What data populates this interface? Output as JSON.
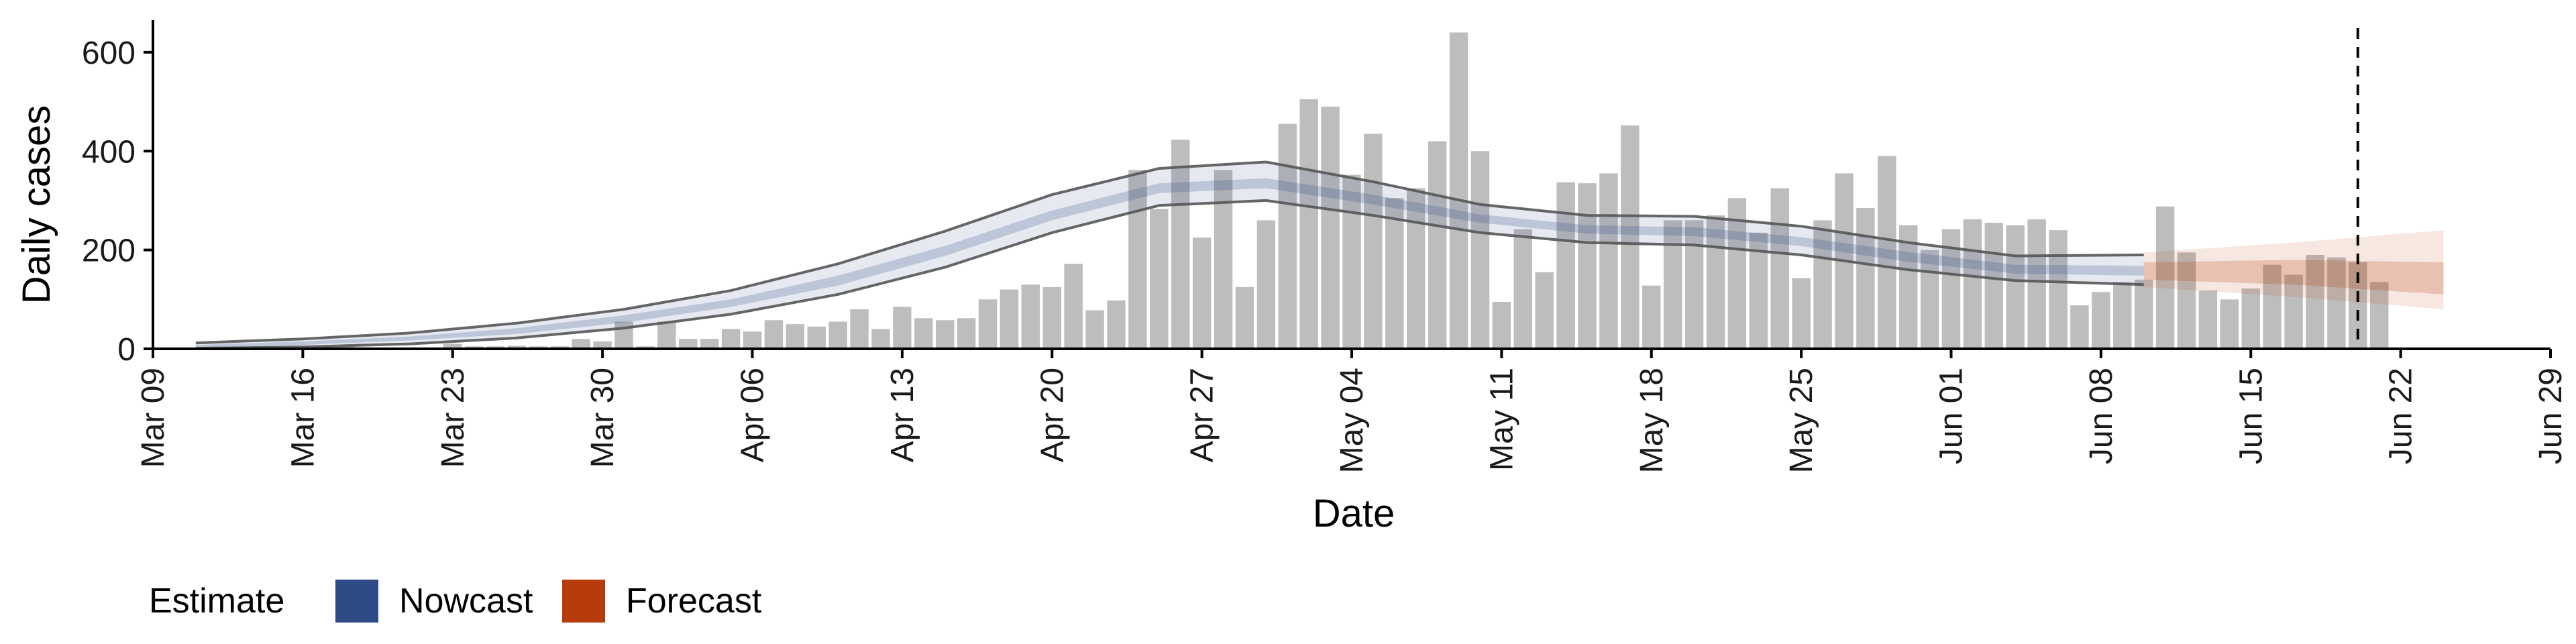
{
  "chart_data": {
    "type": "bar",
    "title": "",
    "xlabel": "Date",
    "ylabel": "Daily cases",
    "ylim": [
      0,
      665
    ],
    "yticks": [
      0,
      200,
      400,
      600
    ],
    "x_range": [
      "2020-03-09",
      "2020-06-29"
    ],
    "x_ticks": [
      {
        "date": "2020-03-09",
        "label": "Mar 09"
      },
      {
        "date": "2020-03-16",
        "label": "Mar 16"
      },
      {
        "date": "2020-03-23",
        "label": "Mar 23"
      },
      {
        "date": "2020-03-30",
        "label": "Mar 30"
      },
      {
        "date": "2020-04-06",
        "label": "Apr 06"
      },
      {
        "date": "2020-04-13",
        "label": "Apr 13"
      },
      {
        "date": "2020-04-20",
        "label": "Apr 20"
      },
      {
        "date": "2020-04-27",
        "label": "Apr 27"
      },
      {
        "date": "2020-05-04",
        "label": "May 04"
      },
      {
        "date": "2020-05-11",
        "label": "May 11"
      },
      {
        "date": "2020-05-18",
        "label": "May 18"
      },
      {
        "date": "2020-05-25",
        "label": "May 25"
      },
      {
        "date": "2020-06-01",
        "label": "Jun 01"
      },
      {
        "date": "2020-06-08",
        "label": "Jun 08"
      },
      {
        "date": "2020-06-15",
        "label": "Jun 15"
      },
      {
        "date": "2020-06-22",
        "label": "Jun 22"
      },
      {
        "date": "2020-06-29",
        "label": "Jun 29"
      }
    ],
    "bars": {
      "start_date": "2020-03-11",
      "color": "#bdbdbd",
      "values": [
        1,
        2,
        3,
        2,
        2,
        3,
        6,
        4,
        3,
        2,
        2,
        2,
        10,
        5,
        5,
        6,
        5,
        5,
        20,
        15,
        55,
        5,
        55,
        20,
        20,
        40,
        35,
        58,
        50,
        45,
        55,
        80,
        40,
        85,
        62,
        58,
        62,
        100,
        120,
        130,
        125,
        172,
        78,
        98,
        362,
        283,
        423,
        225,
        362,
        125,
        260,
        455,
        505,
        490,
        352,
        435,
        305,
        325,
        420,
        640,
        400,
        95,
        242,
        155,
        337,
        335,
        355,
        452,
        128,
        260,
        260,
        270,
        305,
        235,
        325,
        143,
        260,
        355,
        285,
        390,
        250,
        200,
        242,
        262,
        255,
        250,
        262,
        240,
        88,
        115,
        135,
        140,
        288,
        195,
        118,
        100,
        122,
        170,
        150,
        190,
        185,
        175,
        135
      ]
    },
    "reference_line_date": "2020-06-20",
    "legend": {
      "title": "Estimate",
      "position": "bottom",
      "items": [
        {
          "label": "Nowcast",
          "color": "#2e4a87"
        },
        {
          "label": "Forecast",
          "color": "#b53b0b"
        }
      ]
    },
    "nowcast": {
      "start_date": "2020-03-11",
      "end_date": "2020-06-10",
      "color": "#2e4a87",
      "knots": [
        {
          "date": "2020-03-11",
          "lo90": 1,
          "lo50": 3,
          "hi50": 8,
          "hi90": 12
        },
        {
          "date": "2020-03-16",
          "lo90": 4,
          "lo50": 8,
          "hi50": 15,
          "hi90": 20
        },
        {
          "date": "2020-03-21",
          "lo90": 10,
          "lo50": 17,
          "hi50": 25,
          "hi90": 32
        },
        {
          "date": "2020-03-26",
          "lo90": 22,
          "lo50": 30,
          "hi50": 42,
          "hi90": 52
        },
        {
          "date": "2020-03-31",
          "lo90": 42,
          "lo50": 53,
          "hi50": 68,
          "hi90": 80
        },
        {
          "date": "2020-04-05",
          "lo90": 70,
          "lo50": 85,
          "hi50": 100,
          "hi90": 118
        },
        {
          "date": "2020-04-10",
          "lo90": 110,
          "lo50": 128,
          "hi50": 148,
          "hi90": 172
        },
        {
          "date": "2020-04-15",
          "lo90": 165,
          "lo50": 188,
          "hi50": 208,
          "hi90": 238
        },
        {
          "date": "2020-04-20",
          "lo90": 235,
          "lo50": 260,
          "hi50": 280,
          "hi90": 312
        },
        {
          "date": "2020-04-25",
          "lo90": 290,
          "lo50": 315,
          "hi50": 335,
          "hi90": 365
        },
        {
          "date": "2020-04-30",
          "lo90": 300,
          "lo50": 325,
          "hi50": 345,
          "hi90": 378
        },
        {
          "date": "2020-05-05",
          "lo90": 270,
          "lo50": 292,
          "hi50": 312,
          "hi90": 338
        },
        {
          "date": "2020-05-10",
          "lo90": 235,
          "lo50": 255,
          "hi50": 272,
          "hi90": 292
        },
        {
          "date": "2020-05-15",
          "lo90": 215,
          "lo50": 233,
          "hi50": 250,
          "hi90": 270
        },
        {
          "date": "2020-05-20",
          "lo90": 210,
          "lo50": 228,
          "hi50": 246,
          "hi90": 268
        },
        {
          "date": "2020-05-25",
          "lo90": 190,
          "lo50": 208,
          "hi50": 226,
          "hi90": 248
        },
        {
          "date": "2020-05-30",
          "lo90": 160,
          "lo50": 176,
          "hi50": 196,
          "hi90": 215
        },
        {
          "date": "2020-06-04",
          "lo90": 138,
          "lo50": 152,
          "hi50": 170,
          "hi90": 188
        },
        {
          "date": "2020-06-10",
          "lo90": 130,
          "lo50": 148,
          "hi50": 168,
          "hi90": 190
        }
      ]
    },
    "forecast": {
      "start_date": "2020-06-10",
      "end_date": "2020-06-24",
      "color": "#b53b0b",
      "knots": [
        {
          "date": "2020-06-10",
          "lo90": 125,
          "lo50": 140,
          "hi50": 175,
          "hi90": 195
        },
        {
          "date": "2020-06-17",
          "lo90": 105,
          "lo50": 130,
          "hi50": 180,
          "hi90": 215
        },
        {
          "date": "2020-06-24",
          "lo90": 80,
          "lo50": 110,
          "hi50": 175,
          "hi90": 240
        }
      ]
    }
  }
}
